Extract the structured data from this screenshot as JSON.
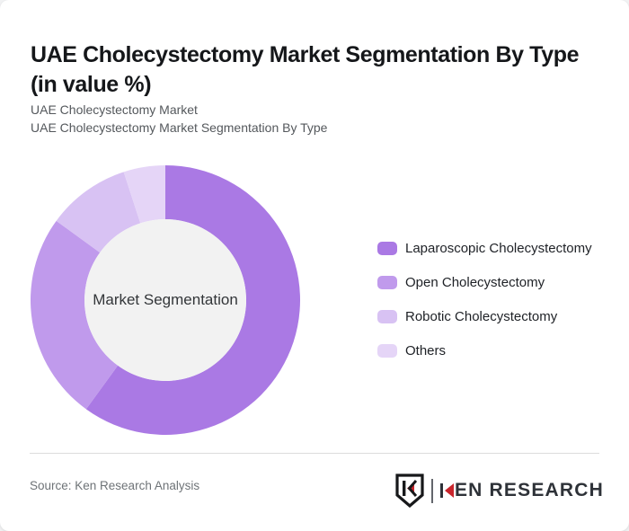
{
  "card": {
    "title_line1": "UAE Cholecystectomy Market Segmentation By Type",
    "title_line2": "(in value %)",
    "subtitle_line1": "UAE Cholecystectomy Market",
    "subtitle_line2": "UAE Cholecystectomy Market Segmentation By Type"
  },
  "chart": {
    "center_label": "Market Segmentation",
    "hole_color": "#f2f2f2"
  },
  "chart_data": {
    "type": "pie",
    "subtype": "donut",
    "title": "UAE Cholecystectomy Market Segmentation By Type (in value %)",
    "unit": "value %",
    "values_estimated_from_arc_angles": true,
    "start_angle_deg": 0,
    "direction": "clockwise",
    "inner_radius_ratio": 0.6,
    "legend_position": "right",
    "center_label": "Market Segmentation",
    "segments": [
      {
        "label": "Laparoscopic Cholecystectomy",
        "value": 60,
        "color": "#aa79e4"
      },
      {
        "label": "Open Cholecystectomy",
        "value": 25,
        "color": "#c09aec"
      },
      {
        "label": "Robotic Cholecystectomy",
        "value": 10,
        "color": "#d8c2f3"
      },
      {
        "label": "Others",
        "value": 5,
        "color": "#e5d5f7"
      }
    ]
  },
  "footer": {
    "source": "Source: Ken Research Analysis",
    "logo": {
      "full_text": "KEN RESEARCH",
      "text_after_k": "EN RESEARCH",
      "red": "#c9252c",
      "dark": "#2e3238"
    }
  }
}
